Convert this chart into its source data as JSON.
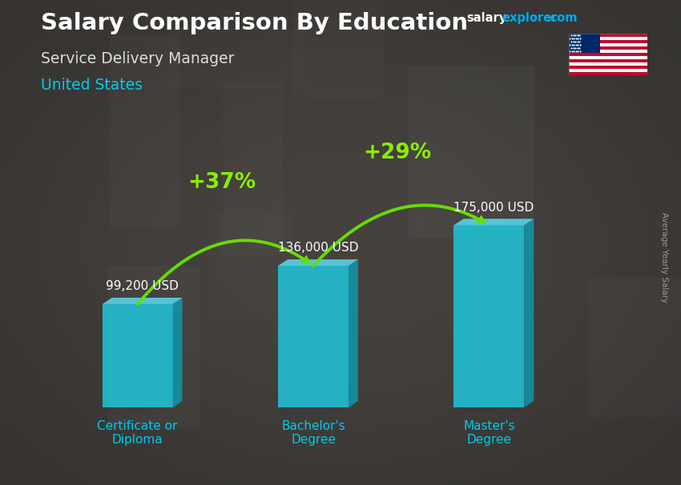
{
  "title": "Salary Comparison By Education",
  "subtitle": "Service Delivery Manager",
  "country": "United States",
  "categories": [
    "Certificate or\nDiploma",
    "Bachelor's\nDegree",
    "Master's\nDegree"
  ],
  "values": [
    99200,
    136000,
    175000
  ],
  "value_labels": [
    "99,200 USD",
    "136,000 USD",
    "175,000 USD"
  ],
  "pct_changes": [
    "+37%",
    "+29%"
  ],
  "bar_color_front": "#1ecbe1",
  "bar_color_top": "#5de0f5",
  "bar_color_side": "#0f9ab0",
  "bar_alpha": 0.82,
  "bg_color": "#2a2f35",
  "title_color": "#ffffff",
  "subtitle_color": "#dddddd",
  "country_color": "#00ccee",
  "label_color": "#ffffff",
  "cat_color": "#00ccee",
  "pct_color": "#88ee00",
  "arrow_color": "#66dd00",
  "ylabel": "Average Yearly Salary",
  "ylabel_color": "#999999",
  "website_salary_color": "#ffffff",
  "website_explorer_color": "#00aaee",
  "website_dot_com_color": "#00aaee"
}
